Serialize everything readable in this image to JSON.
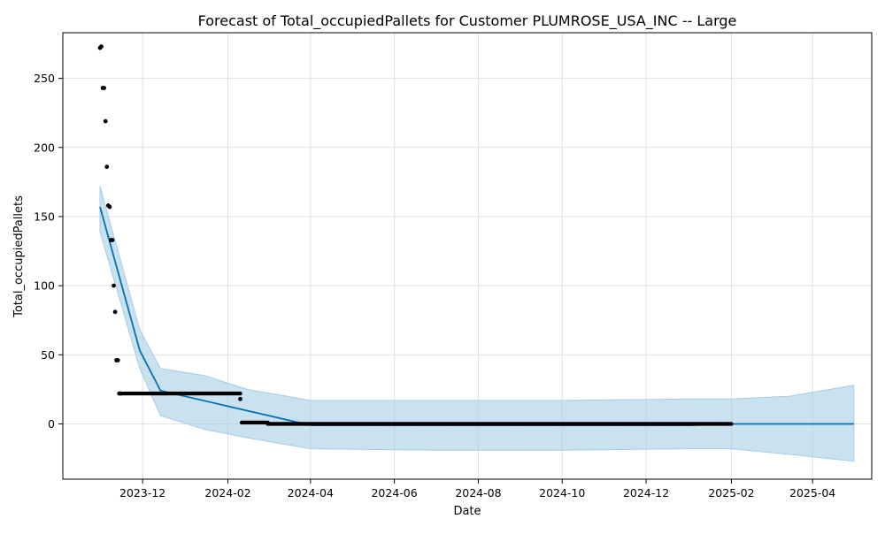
{
  "chart_data": {
    "type": "line",
    "title": "Forecast of Total_occupiedPallets for Customer PLUMROSE_USA_INC -- Large",
    "xlabel": "Date",
    "ylabel": "Total_occupiedPallets",
    "xlim": [
      "2023-10-04",
      "2025-05-14"
    ],
    "ylim": [
      -40,
      283
    ],
    "grid": true,
    "x_ticks": [
      "2023-12",
      "2024-02",
      "2024-04",
      "2024-06",
      "2024-08",
      "2024-10",
      "2024-12",
      "2025-02",
      "2025-04"
    ],
    "y_ticks": [
      0,
      50,
      100,
      150,
      200,
      250
    ],
    "colors": {
      "forecast_line": "#0072b2",
      "uncertainty_band": "#a6cde4",
      "observed_points": "#000000",
      "grid": "#e0e0e0"
    },
    "series": [
      {
        "kind": "line",
        "x": [
          "2023-10-31",
          "2023-11-29",
          "2023-12-14",
          "2024-04-01",
          "2024-07-01",
          "2024-10-01",
          "2025-01-01",
          "2025-02-01",
          "2025-05-01"
        ],
        "y": [
          157,
          53,
          24,
          -1,
          -1,
          -1,
          -1,
          0,
          0
        ]
      },
      {
        "kind": "band",
        "x": [
          "2023-10-31",
          "2023-11-29",
          "2023-12-14",
          "2024-01-15",
          "2024-02-15",
          "2024-04-01",
          "2024-07-01",
          "2024-10-01",
          "2025-01-01",
          "2025-02-01",
          "2025-03-15",
          "2025-05-01"
        ],
        "upper": [
          172,
          68,
          40,
          35,
          25,
          17,
          17,
          17,
          18,
          18,
          20,
          28
        ],
        "lower": [
          139,
          40,
          6,
          -4,
          -10,
          -18,
          -19,
          -19,
          -18,
          -18,
          -22,
          -27
        ]
      },
      {
        "kind": "scatter",
        "x": [
          "2023-10-31",
          "2023-11-01",
          "2023-11-02",
          "2023-11-03",
          "2023-11-04",
          "2023-11-05",
          "2023-11-06",
          "2023-11-07",
          "2023-11-08",
          "2023-11-09",
          "2023-11-10",
          "2023-11-11",
          "2023-11-12",
          "2023-11-13",
          "2023-11-14",
          "2023-11-15"
        ],
        "y": [
          272,
          273,
          243,
          243,
          219,
          186,
          158,
          157,
          133,
          133,
          100,
          81,
          46,
          46,
          22,
          22
        ]
      },
      {
        "kind": "scatter",
        "x": [
          "2024-02-10"
        ],
        "y": [
          18
        ]
      }
    ],
    "observed_runs": [
      {
        "from": "2023-11-15",
        "to": "2024-02-10",
        "y": 22
      },
      {
        "from": "2024-02-11",
        "to": "2024-03-01",
        "y": 1
      },
      {
        "from": "2024-03-01",
        "to": "2025-02-01",
        "y": 0
      }
    ]
  }
}
